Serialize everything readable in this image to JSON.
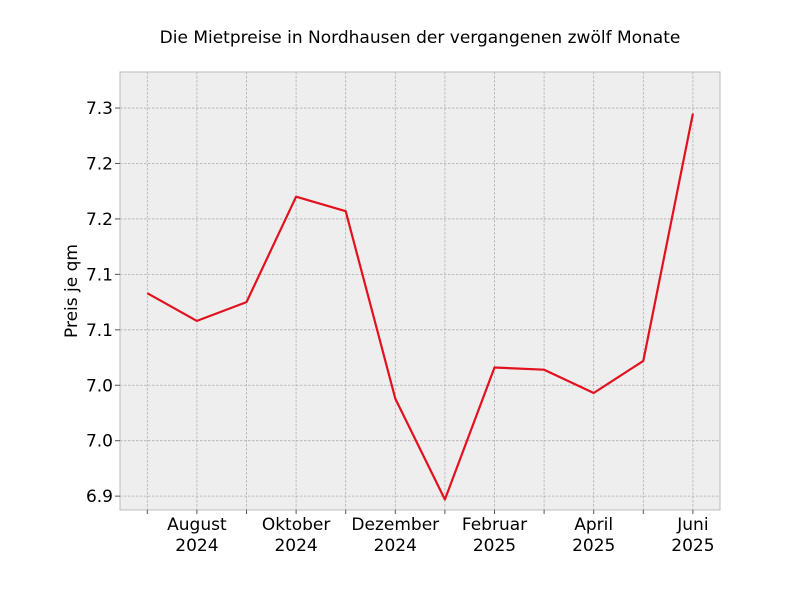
{
  "chart_data": {
    "type": "line",
    "title": "Die Mietpreise in Nordhausen der vergangenen zwölf Monate",
    "xlabel": "",
    "ylabel": "Preis je qm",
    "x": [
      "2024-07",
      "2024-08",
      "2024-09",
      "2024-10",
      "2024-11",
      "2024-12",
      "2025-01",
      "2025-02",
      "2025-03",
      "2025-04",
      "2025-05",
      "2025-06"
    ],
    "series": [
      {
        "values": [
          7.083,
          7.058,
          7.075,
          7.17,
          7.157,
          6.988,
          6.897,
          7.016,
          7.014,
          6.993,
          7.022,
          7.245
        ]
      }
    ],
    "x_tick_labels": [
      {
        "line1": "August",
        "line2": "2024",
        "at": "2024-08"
      },
      {
        "line1": "Oktober",
        "line2": "2024",
        "at": "2024-10"
      },
      {
        "line1": "Dezember",
        "line2": "2024",
        "at": "2024-12"
      },
      {
        "line1": "Februar",
        "line2": "2025",
        "at": "2025-02"
      },
      {
        "line1": "April",
        "line2": "2025",
        "at": "2025-04"
      },
      {
        "line1": "Juni",
        "line2": "2025",
        "at": "2025-06"
      }
    ],
    "y_ticks": [
      {
        "value": 6.9,
        "label": "6.9"
      },
      {
        "value": 6.95,
        "label": "7.0"
      },
      {
        "value": 7.0,
        "label": "7.0"
      },
      {
        "value": 7.05,
        "label": "7.1"
      },
      {
        "value": 7.1,
        "label": "7.1"
      },
      {
        "value": 7.15,
        "label": "7.2"
      },
      {
        "value": 7.2,
        "label": "7.2"
      },
      {
        "value": 7.25,
        "label": "7.3"
      }
    ],
    "ylim": [
      6.8875,
      7.2825
    ],
    "grid": true,
    "line_color": "#e3101e",
    "plot_background": "#eeeeee",
    "grid_color": "#b0b0b0"
  }
}
